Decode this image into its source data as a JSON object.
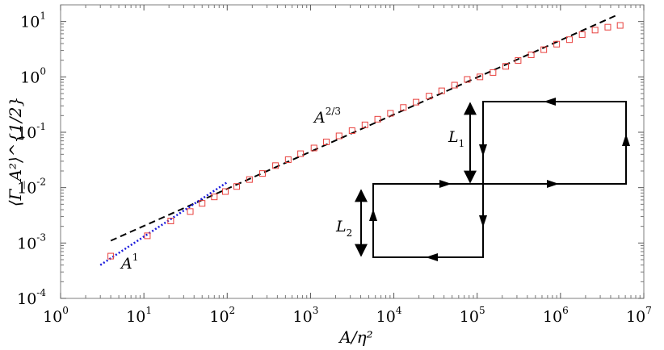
{
  "chart_data": {
    "type": "scatter",
    "title": "",
    "xlabel": "A/η²",
    "ylabel": "⟨Γ_A²⟩^{1/2}",
    "xscale": "log",
    "yscale": "log",
    "xlim": [
      1,
      10000000
    ],
    "ylim": [
      0.0001,
      20
    ],
    "grid": false,
    "x_ticks": [
      {
        "value": 1,
        "base": "10",
        "exp": "0"
      },
      {
        "value": 10,
        "base": "10",
        "exp": "1"
      },
      {
        "value": 100,
        "base": "10",
        "exp": "2"
      },
      {
        "value": 1000,
        "base": "10",
        "exp": "3"
      },
      {
        "value": 10000,
        "base": "10",
        "exp": "4"
      },
      {
        "value": 100000,
        "base": "10",
        "exp": "5"
      },
      {
        "value": 1000000,
        "base": "10",
        "exp": "6"
      },
      {
        "value": 10000000,
        "base": "10",
        "exp": "7"
      }
    ],
    "y_ticks": [
      {
        "value": 0.0001,
        "base": "10",
        "exp": "-4"
      },
      {
        "value": 0.001,
        "base": "10",
        "exp": "-3"
      },
      {
        "value": 0.01,
        "base": "10",
        "exp": "-2"
      },
      {
        "value": 0.1,
        "base": "10",
        "exp": "-1"
      },
      {
        "value": 1,
        "base": "10",
        "exp": "0"
      },
      {
        "value": 10,
        "base": "10",
        "exp": "1"
      }
    ],
    "series": [
      {
        "style": "markers",
        "marker": "square",
        "color": "#e8413e",
        "points": [
          {
            "x": 4,
            "y": 0.00058
          },
          {
            "x": 11,
            "y": 0.00135
          },
          {
            "x": 21,
            "y": 0.0025
          },
          {
            "x": 36,
            "y": 0.0037
          },
          {
            "x": 50,
            "y": 0.0052
          },
          {
            "x": 70,
            "y": 0.0068
          },
          {
            "x": 95,
            "y": 0.0085
          },
          {
            "x": 130,
            "y": 0.0105
          },
          {
            "x": 185,
            "y": 0.014
          },
          {
            "x": 265,
            "y": 0.018
          },
          {
            "x": 380,
            "y": 0.025
          },
          {
            "x": 540,
            "y": 0.032
          },
          {
            "x": 760,
            "y": 0.041
          },
          {
            "x": 1100,
            "y": 0.052
          },
          {
            "x": 1550,
            "y": 0.067
          },
          {
            "x": 2200,
            "y": 0.086
          },
          {
            "x": 3150,
            "y": 0.107
          },
          {
            "x": 4500,
            "y": 0.136
          },
          {
            "x": 6400,
            "y": 0.172
          },
          {
            "x": 9100,
            "y": 0.22
          },
          {
            "x": 13000,
            "y": 0.28
          },
          {
            "x": 18500,
            "y": 0.35
          },
          {
            "x": 26500,
            "y": 0.45
          },
          {
            "x": 37500,
            "y": 0.56
          },
          {
            "x": 53500,
            "y": 0.71
          },
          {
            "x": 76000,
            "y": 0.9
          },
          {
            "x": 108000,
            "y": 1.0
          },
          {
            "x": 155000,
            "y": 1.2
          },
          {
            "x": 220000,
            "y": 1.55
          },
          {
            "x": 310000,
            "y": 1.98
          },
          {
            "x": 445000,
            "y": 2.5
          },
          {
            "x": 630000,
            "y": 3.1
          },
          {
            "x": 900000,
            "y": 3.9
          },
          {
            "x": 1280000,
            "y": 4.7
          },
          {
            "x": 1820000,
            "y": 5.8
          },
          {
            "x": 2600000,
            "y": 7.0
          },
          {
            "x": 3700000,
            "y": 7.9
          },
          {
            "x": 5200000,
            "y": 8.5
          }
        ]
      },
      {
        "style": "dashed",
        "color": "#000000",
        "x": [
          4,
          5000000
        ],
        "y": [
          0.0011,
          13.5
        ]
      },
      {
        "style": "dotted",
        "color": "#1a1adc",
        "x": [
          3,
          100
        ],
        "y": [
          0.0004,
          0.0125
        ]
      }
    ],
    "annotations": [
      {
        "base": "A",
        "exp": "2/3"
      },
      {
        "base": "A",
        "exp": "1"
      }
    ],
    "inset": {
      "labels": [
        {
          "base": "L",
          "sub": "1"
        },
        {
          "base": "L",
          "sub": "2"
        }
      ]
    }
  }
}
